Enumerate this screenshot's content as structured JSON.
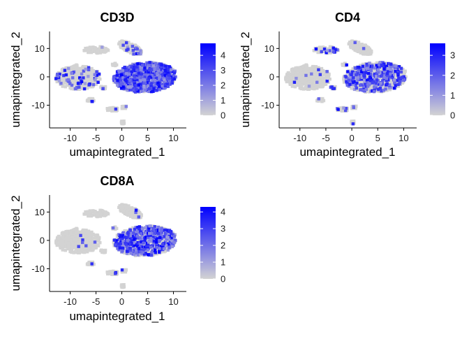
{
  "chart_data": [
    {
      "type": "scatter",
      "title": "CD3D",
      "xlabel": "umapintegrated_1",
      "ylabel": "umapintegrated_2",
      "xlim": [
        -14,
        12.5
      ],
      "ylim": [
        -18,
        16
      ],
      "x_ticks": [
        "-10",
        "-5",
        "0",
        "5",
        "10"
      ],
      "y_ticks": [
        "10",
        "0",
        "-10"
      ],
      "x_tick_values": [
        -10,
        -5,
        0,
        5,
        10
      ],
      "y_tick_values": [
        10,
        0,
        -10
      ],
      "colorbar": {
        "min": 0,
        "max": 4.8,
        "ticks": [
          "4",
          "3",
          "2",
          "1",
          "0"
        ],
        "tick_values": [
          4,
          3,
          2,
          1,
          0
        ],
        "low_color": "#d3d3d3",
        "high_color": "#0000ff"
      },
      "grid": false,
      "legend_position": "right",
      "expression": {
        "main_cluster": 0.75,
        "upper_right_cluster": 0.1,
        "upper_left_cluster": 0.03,
        "left_cluster": 0.15,
        "small_clusters": 0.1
      }
    },
    {
      "type": "scatter",
      "title": "CD4",
      "xlabel": "umapintegrated_1",
      "ylabel": "umapintegrated_2",
      "xlim": [
        -14,
        12.5
      ],
      "ylim": [
        -18,
        16
      ],
      "x_ticks": [
        "-10",
        "-5",
        "0",
        "5",
        "10"
      ],
      "y_ticks": [
        "10",
        "0",
        "-10"
      ],
      "x_tick_values": [
        -10,
        -5,
        0,
        5,
        10
      ],
      "y_tick_values": [
        10,
        0,
        -10
      ],
      "colorbar": {
        "min": 0,
        "max": 3.6,
        "ticks": [
          "3",
          "2",
          "1",
          "0"
        ],
        "tick_values": [
          3,
          2,
          1,
          0
        ],
        "low_color": "#d3d3d3",
        "high_color": "#0000ff"
      },
      "grid": false,
      "legend_position": "right",
      "expression": {
        "main_cluster": 0.3,
        "upper_right_cluster": 0.01,
        "upper_left_cluster": 0.12,
        "left_cluster": 0.02,
        "small_clusters": 0.15
      }
    },
    {
      "type": "scatter",
      "title": "CD8A",
      "xlabel": "umapintegrated_1",
      "ylabel": "umapintegrated_2",
      "xlim": [
        -14,
        12.5
      ],
      "ylim": [
        -18,
        16
      ],
      "x_ticks": [
        "-10",
        "-5",
        "0",
        "5",
        "10"
      ],
      "y_ticks": [
        "10",
        "0",
        "-10"
      ],
      "x_tick_values": [
        -10,
        -5,
        0,
        5,
        10
      ],
      "y_tick_values": [
        10,
        0,
        -10
      ],
      "colorbar": {
        "min": 0,
        "max": 4.3,
        "ticks": [
          "4",
          "3",
          "2",
          "1",
          "0"
        ],
        "tick_values": [
          4,
          3,
          2,
          1,
          0
        ],
        "low_color": "#d3d3d3",
        "high_color": "#0000ff"
      },
      "grid": false,
      "legend_position": "right",
      "expression": {
        "main_cluster": 0.35,
        "upper_right_cluster": 0.02,
        "upper_left_cluster": 0.0,
        "left_cluster": 0.02,
        "small_clusters": 0.05
      }
    }
  ]
}
